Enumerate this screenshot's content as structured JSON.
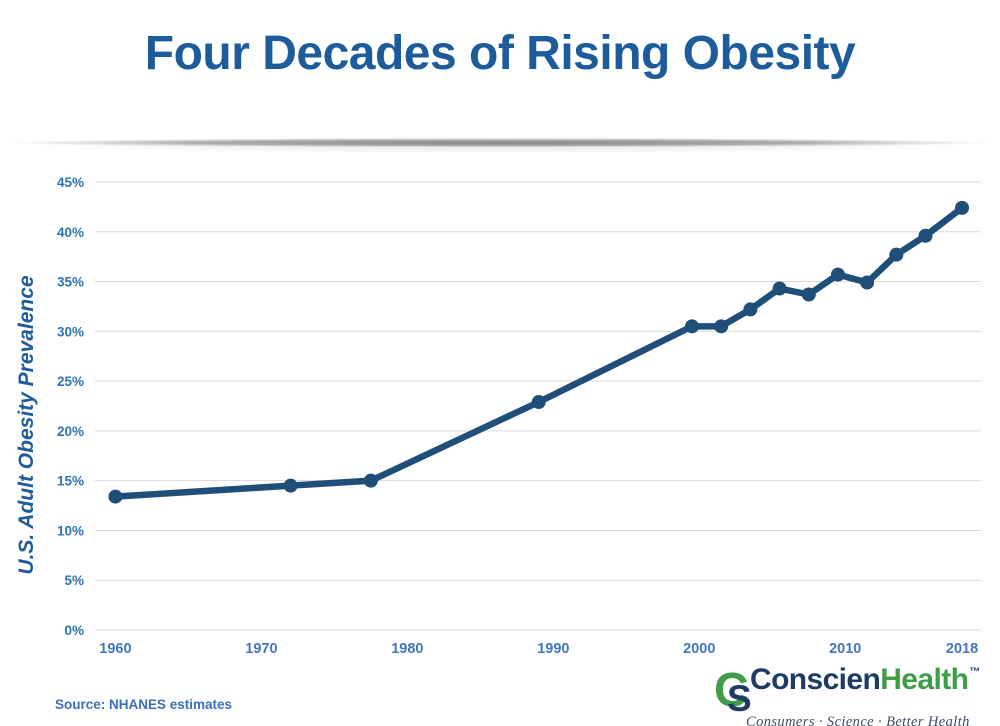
{
  "header": {
    "title": "Four Decades of Rising Obesity"
  },
  "chart_data": {
    "type": "line",
    "title": "Four Decades of Rising Obesity",
    "ylabel": "U.S. Adult Obesity Prevalence",
    "xlabel": "",
    "x": [
      1960,
      1972,
      1977.5,
      1989,
      1999.5,
      2001.5,
      2003.5,
      2005.5,
      2007.5,
      2009.5,
      2011.5,
      2013.5,
      2015.5,
      2018
    ],
    "y": [
      13.4,
      14.5,
      15.0,
      22.9,
      30.5,
      30.5,
      32.2,
      34.3,
      33.7,
      35.7,
      34.9,
      37.7,
      39.6,
      42.4
    ],
    "x_ticks": [
      {
        "value": 1960,
        "label": "1960"
      },
      {
        "value": 1970,
        "label": "1970"
      },
      {
        "value": 1980,
        "label": "1980"
      },
      {
        "value": 1990,
        "label": "1990"
      },
      {
        "value": 2000,
        "label": "2000"
      },
      {
        "value": 2010,
        "label": "2010"
      },
      {
        "value": 2018,
        "label": "2018"
      }
    ],
    "y_ticks": [
      {
        "value": 0,
        "label": "0%"
      },
      {
        "value": 5,
        "label": "5%"
      },
      {
        "value": 10,
        "label": "10%"
      },
      {
        "value": 15,
        "label": "15%"
      },
      {
        "value": 20,
        "label": "20%"
      },
      {
        "value": 25,
        "label": "25%"
      },
      {
        "value": 30,
        "label": "30%"
      },
      {
        "value": 35,
        "label": "35%"
      },
      {
        "value": 40,
        "label": "40%"
      },
      {
        "value": 45,
        "label": "45%"
      }
    ],
    "xlim": [
      1958.6,
      2019.3
    ],
    "ylim": [
      0,
      45
    ],
    "grid": true,
    "legend": false,
    "marker": "circle",
    "line_width": 6.5,
    "marker_radius": 7,
    "colors": {
      "line": "#1F4E79",
      "grid": "#D9D9D9",
      "y_tick": "#2E74B5",
      "x_tick": "#4377BD",
      "axis_title": "#1F5C99",
      "title": "#1D5C9B"
    }
  },
  "footer": {
    "source": "Source: NHANES estimates",
    "logo": {
      "monogram_c": "C",
      "monogram_s": "S",
      "name_part1": "Conscien",
      "name_part2": "Health",
      "trademark": "™",
      "tagline": "Consumers · Science · Better Health",
      "colors": {
        "navy": "#1E3B66",
        "green": "#3F9D47",
        "tagline_text": "#3D4E63"
      }
    }
  }
}
